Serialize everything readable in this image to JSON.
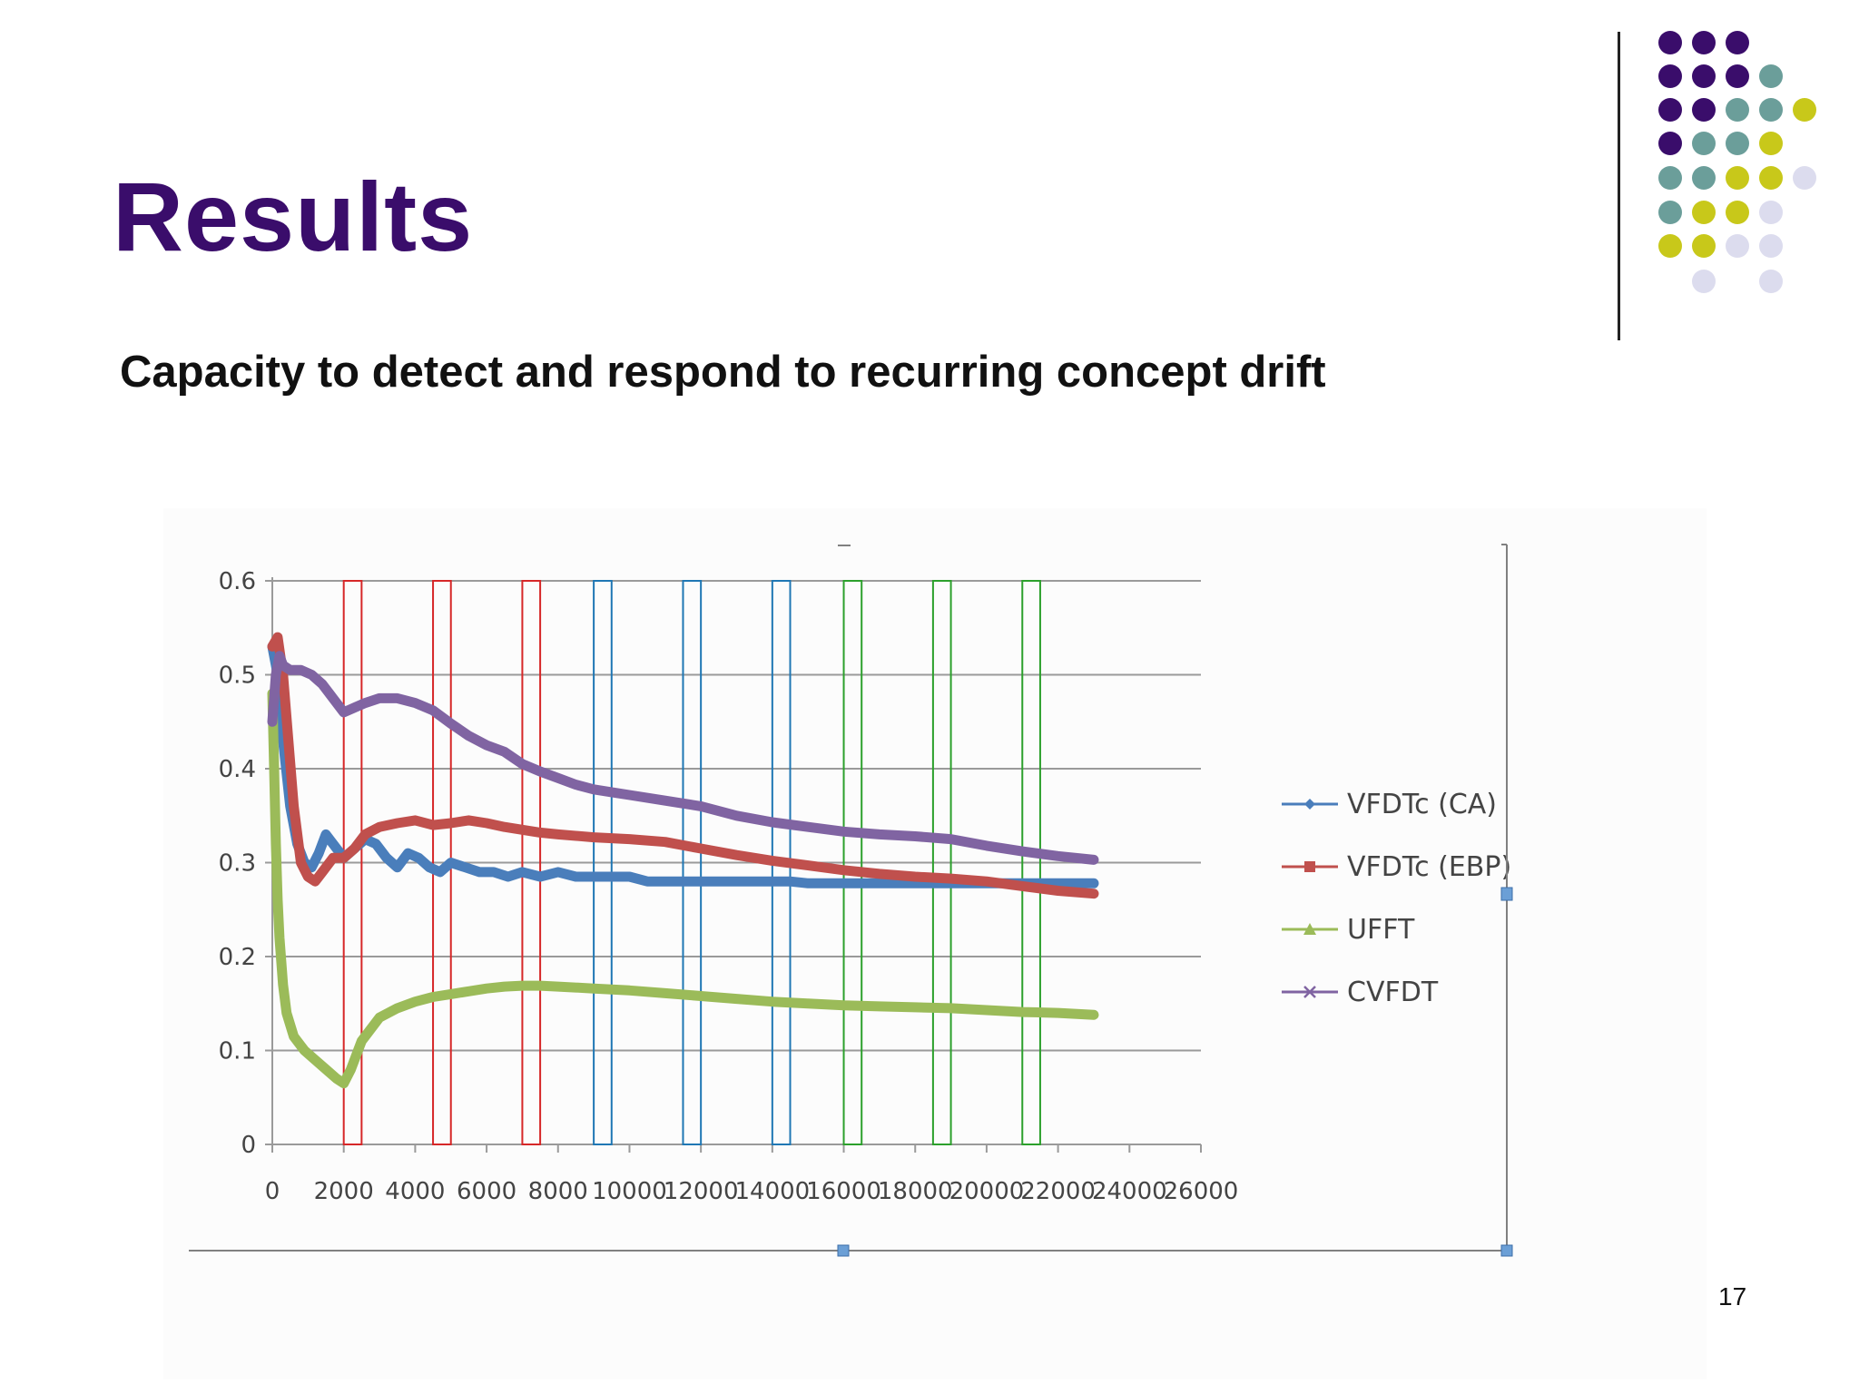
{
  "slide": {
    "title": "Results",
    "subtitle": "Capacity to detect and respond to recurring concept drift",
    "page_number": "17"
  },
  "decoration": {
    "dot_colors": {
      "purple": "#3a0d6b",
      "teal": "#6b9e9a",
      "yellow": "#c8c81a",
      "lavender": "#dcdcee"
    }
  },
  "chart_data": {
    "type": "line",
    "title": "",
    "xlabel": "",
    "ylabel": "",
    "xlim": [
      0,
      26000
    ],
    "ylim": [
      0,
      0.6
    ],
    "x_ticks": [
      "0",
      "2000",
      "4000",
      "6000",
      "8000",
      "10000",
      "12000",
      "14000",
      "16000",
      "18000",
      "20000",
      "22000",
      "24000",
      "26000"
    ],
    "y_ticks": [
      "0",
      "0.1",
      "0.2",
      "0.3",
      "0.4",
      "0.5",
      "0.6"
    ],
    "grid": "horizontal",
    "legend_position": "right",
    "series": [
      {
        "name": "VFDTc (CA)",
        "color": "#4a7ebb",
        "marker": "diamond",
        "points": [
          [
            0,
            0.53
          ],
          [
            150,
            0.5
          ],
          [
            300,
            0.43
          ],
          [
            500,
            0.36
          ],
          [
            700,
            0.32
          ],
          [
            900,
            0.3
          ],
          [
            1100,
            0.295
          ],
          [
            1300,
            0.31
          ],
          [
            1500,
            0.33
          ],
          [
            1700,
            0.32
          ],
          [
            2000,
            0.305
          ],
          [
            2300,
            0.315
          ],
          [
            2600,
            0.325
          ],
          [
            2900,
            0.32
          ],
          [
            3200,
            0.305
          ],
          [
            3500,
            0.295
          ],
          [
            3800,
            0.31
          ],
          [
            4100,
            0.305
          ],
          [
            4400,
            0.295
          ],
          [
            4700,
            0.29
          ],
          [
            5000,
            0.3
          ],
          [
            5400,
            0.295
          ],
          [
            5800,
            0.29
          ],
          [
            6200,
            0.29
          ],
          [
            6600,
            0.285
          ],
          [
            7000,
            0.29
          ],
          [
            7500,
            0.285
          ],
          [
            8000,
            0.29
          ],
          [
            8500,
            0.285
          ],
          [
            9000,
            0.285
          ],
          [
            9500,
            0.285
          ],
          [
            10000,
            0.285
          ],
          [
            10500,
            0.28
          ],
          [
            11000,
            0.28
          ],
          [
            11500,
            0.28
          ],
          [
            12000,
            0.28
          ],
          [
            12500,
            0.28
          ],
          [
            13000,
            0.28
          ],
          [
            13500,
            0.28
          ],
          [
            14000,
            0.28
          ],
          [
            14500,
            0.28
          ],
          [
            15000,
            0.278
          ],
          [
            15500,
            0.278
          ],
          [
            16000,
            0.278
          ],
          [
            16500,
            0.278
          ],
          [
            17000,
            0.278
          ],
          [
            17500,
            0.278
          ],
          [
            18000,
            0.278
          ],
          [
            18500,
            0.278
          ],
          [
            19000,
            0.278
          ],
          [
            19500,
            0.278
          ],
          [
            20000,
            0.278
          ],
          [
            20500,
            0.278
          ],
          [
            21000,
            0.278
          ],
          [
            21500,
            0.278
          ],
          [
            22000,
            0.278
          ],
          [
            22500,
            0.278
          ],
          [
            23000,
            0.278
          ]
        ]
      },
      {
        "name": "VFDTc (EBP)",
        "color": "#c0504d",
        "marker": "square",
        "points": [
          [
            0,
            0.53
          ],
          [
            150,
            0.54
          ],
          [
            300,
            0.5
          ],
          [
            450,
            0.43
          ],
          [
            600,
            0.36
          ],
          [
            800,
            0.3
          ],
          [
            1000,
            0.285
          ],
          [
            1200,
            0.28
          ],
          [
            1400,
            0.29
          ],
          [
            1700,
            0.305
          ],
          [
            2000,
            0.305
          ],
          [
            2300,
            0.315
          ],
          [
            2600,
            0.33
          ],
          [
            3000,
            0.338
          ],
          [
            3500,
            0.342
          ],
          [
            4000,
            0.345
          ],
          [
            4500,
            0.34
          ],
          [
            5000,
            0.342
          ],
          [
            5500,
            0.345
          ],
          [
            6000,
            0.342
          ],
          [
            6500,
            0.338
          ],
          [
            7000,
            0.335
          ],
          [
            7500,
            0.332
          ],
          [
            8000,
            0.33
          ],
          [
            9000,
            0.327
          ],
          [
            10000,
            0.325
          ],
          [
            11000,
            0.322
          ],
          [
            12000,
            0.315
          ],
          [
            13000,
            0.308
          ],
          [
            14000,
            0.302
          ],
          [
            15000,
            0.297
          ],
          [
            16000,
            0.292
          ],
          [
            17000,
            0.288
          ],
          [
            18000,
            0.285
          ],
          [
            19000,
            0.283
          ],
          [
            20000,
            0.28
          ],
          [
            21000,
            0.275
          ],
          [
            22000,
            0.27
          ],
          [
            23000,
            0.267
          ]
        ]
      },
      {
        "name": "UFFT",
        "color": "#9bbb59",
        "marker": "triangle",
        "points": [
          [
            0,
            0.48
          ],
          [
            50,
            0.4
          ],
          [
            100,
            0.32
          ],
          [
            150,
            0.26
          ],
          [
            200,
            0.22
          ],
          [
            300,
            0.17
          ],
          [
            400,
            0.14
          ],
          [
            600,
            0.115
          ],
          [
            900,
            0.1
          ],
          [
            1200,
            0.09
          ],
          [
            1500,
            0.08
          ],
          [
            1800,
            0.07
          ],
          [
            2000,
            0.065
          ],
          [
            2200,
            0.08
          ],
          [
            2500,
            0.11
          ],
          [
            3000,
            0.135
          ],
          [
            3500,
            0.145
          ],
          [
            4000,
            0.152
          ],
          [
            4500,
            0.157
          ],
          [
            5000,
            0.16
          ],
          [
            5500,
            0.163
          ],
          [
            6000,
            0.166
          ],
          [
            6500,
            0.168
          ],
          [
            7000,
            0.169
          ],
          [
            7500,
            0.169
          ],
          [
            8000,
            0.168
          ],
          [
            9000,
            0.166
          ],
          [
            10000,
            0.164
          ],
          [
            11000,
            0.161
          ],
          [
            12000,
            0.158
          ],
          [
            13000,
            0.155
          ],
          [
            14000,
            0.152
          ],
          [
            15000,
            0.15
          ],
          [
            16000,
            0.148
          ],
          [
            17000,
            0.147
          ],
          [
            18000,
            0.146
          ],
          [
            19000,
            0.145
          ],
          [
            20000,
            0.143
          ],
          [
            21000,
            0.141
          ],
          [
            22000,
            0.14
          ],
          [
            23000,
            0.138
          ]
        ]
      },
      {
        "name": "CVFDT",
        "color": "#8064a2",
        "marker": "x",
        "points": [
          [
            0,
            0.45
          ],
          [
            100,
            0.5
          ],
          [
            200,
            0.52
          ],
          [
            300,
            0.51
          ],
          [
            500,
            0.505
          ],
          [
            800,
            0.505
          ],
          [
            1100,
            0.5
          ],
          [
            1400,
            0.49
          ],
          [
            1700,
            0.475
          ],
          [
            2000,
            0.46
          ],
          [
            2300,
            0.465
          ],
          [
            2600,
            0.47
          ],
          [
            3000,
            0.475
          ],
          [
            3500,
            0.475
          ],
          [
            4000,
            0.47
          ],
          [
            4500,
            0.462
          ],
          [
            5000,
            0.448
          ],
          [
            5500,
            0.435
          ],
          [
            6000,
            0.425
          ],
          [
            6500,
            0.418
          ],
          [
            7000,
            0.405
          ],
          [
            7500,
            0.397
          ],
          [
            8000,
            0.39
          ],
          [
            8500,
            0.383
          ],
          [
            9000,
            0.378
          ],
          [
            9500,
            0.375
          ],
          [
            10000,
            0.372
          ],
          [
            11000,
            0.366
          ],
          [
            12000,
            0.36
          ],
          [
            13000,
            0.35
          ],
          [
            14000,
            0.343
          ],
          [
            15000,
            0.338
          ],
          [
            16000,
            0.333
          ],
          [
            17000,
            0.33
          ],
          [
            18000,
            0.328
          ],
          [
            19000,
            0.325
          ],
          [
            20000,
            0.318
          ],
          [
            21000,
            0.312
          ],
          [
            22000,
            0.307
          ],
          [
            23000,
            0.303
          ]
        ]
      }
    ],
    "drift_windows": [
      {
        "x_start": 2000,
        "x_end": 2500,
        "color": "#d62728"
      },
      {
        "x_start": 4500,
        "x_end": 5000,
        "color": "#d62728"
      },
      {
        "x_start": 7000,
        "x_end": 7500,
        "color": "#d62728"
      },
      {
        "x_start": 9000,
        "x_end": 9500,
        "color": "#1f77b4"
      },
      {
        "x_start": 11500,
        "x_end": 12000,
        "color": "#1f77b4"
      },
      {
        "x_start": 14000,
        "x_end": 14500,
        "color": "#1f77b4"
      },
      {
        "x_start": 16000,
        "x_end": 16500,
        "color": "#2ca02c"
      },
      {
        "x_start": 18500,
        "x_end": 19000,
        "color": "#2ca02c"
      },
      {
        "x_start": 21000,
        "x_end": 21500,
        "color": "#2ca02c"
      }
    ]
  }
}
